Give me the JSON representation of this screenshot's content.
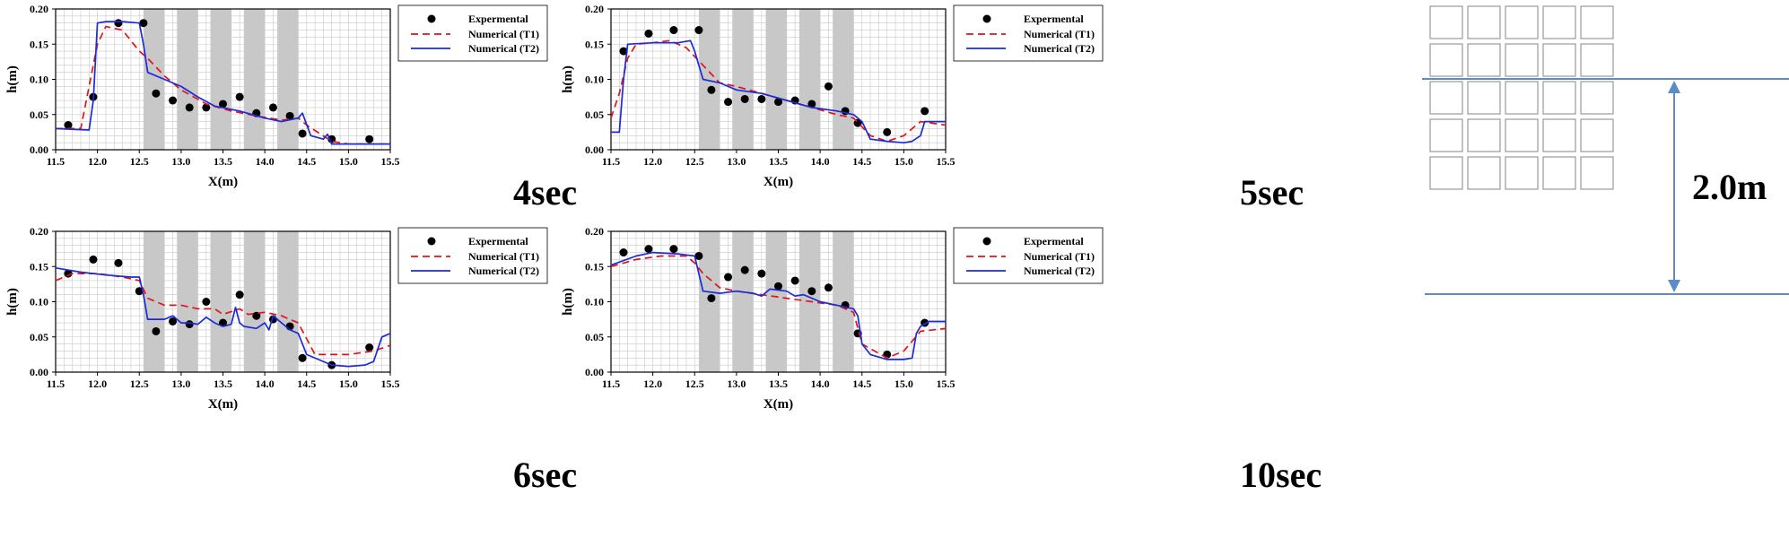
{
  "legend_labels": {
    "experimental": "Expermental",
    "t1": "Numerical (T1)",
    "t2": "Numerical (T2)"
  },
  "colors": {
    "experimental": "#000000",
    "t1": "#e0141a",
    "t2": "#1c2bd6",
    "shade": "#c8c8c8",
    "grid": "#c8c8c8",
    "dimension": "#5b8cc8",
    "building": "#999999"
  },
  "diagram": {
    "distance_label": "2.0m",
    "grid_rows": 5,
    "grid_cols": 5
  },
  "chart_data": [
    {
      "type": "line",
      "title": "",
      "time_label": "4sec",
      "xlabel": "X(m)",
      "ylabel": "h(m)",
      "xlim": [
        11.5,
        15.5
      ],
      "ylim": [
        0,
        0.2
      ],
      "x_ticks": [
        "11.5",
        "12.0",
        "12.5",
        "13.0",
        "13.5",
        "14.0",
        "14.5",
        "15.0",
        "15.5"
      ],
      "y_ticks": [
        "0.00",
        "0.05",
        "0.10",
        "0.15",
        "0.20"
      ],
      "shaded_x": [
        [
          12.55,
          12.8
        ],
        [
          12.95,
          13.2
        ],
        [
          13.35,
          13.6
        ],
        [
          13.75,
          14.0
        ],
        [
          14.15,
          14.4
        ]
      ],
      "series": [
        {
          "name": "Expermental",
          "kind": "points",
          "x": [
            11.65,
            11.95,
            12.25,
            12.55,
            12.7,
            12.9,
            13.1,
            13.3,
            13.5,
            13.7,
            13.9,
            14.1,
            14.3,
            14.45,
            14.8,
            15.25
          ],
          "y": [
            0.035,
            0.075,
            0.18,
            0.18,
            0.08,
            0.07,
            0.06,
            0.06,
            0.065,
            0.075,
            0.052,
            0.06,
            0.048,
            0.023,
            0.015,
            0.015
          ]
        },
        {
          "name": "Numerical (T1)",
          "kind": "dashed",
          "x": [
            11.5,
            11.8,
            12.0,
            12.1,
            12.3,
            12.5,
            12.6,
            12.8,
            13.0,
            13.3,
            13.6,
            13.9,
            14.2,
            14.4,
            14.5,
            14.8,
            15.0,
            15.5
          ],
          "y": [
            0.03,
            0.03,
            0.15,
            0.175,
            0.17,
            0.14,
            0.13,
            0.105,
            0.085,
            0.065,
            0.055,
            0.048,
            0.042,
            0.045,
            0.035,
            0.012,
            0.008,
            0.008
          ]
        },
        {
          "name": "Numerical (T2)",
          "kind": "solid",
          "x": [
            11.5,
            11.9,
            11.95,
            12.0,
            12.1,
            12.3,
            12.5,
            12.55,
            12.6,
            12.8,
            13.0,
            13.2,
            13.4,
            13.7,
            14.0,
            14.2,
            14.4,
            14.45,
            14.55,
            14.7,
            14.75,
            14.8,
            15.0,
            15.5
          ],
          "y": [
            0.03,
            0.028,
            0.07,
            0.18,
            0.182,
            0.182,
            0.18,
            0.15,
            0.11,
            0.1,
            0.09,
            0.075,
            0.062,
            0.055,
            0.045,
            0.04,
            0.045,
            0.052,
            0.02,
            0.015,
            0.022,
            0.008,
            0.008,
            0.008
          ]
        }
      ]
    },
    {
      "type": "line",
      "title": "",
      "time_label": "5sec",
      "xlabel": "X(m)",
      "ylabel": "h(m)",
      "xlim": [
        11.5,
        15.5
      ],
      "ylim": [
        0,
        0.2
      ],
      "x_ticks": [
        "11.5",
        "12.0",
        "12.5",
        "13.0",
        "13.5",
        "14.0",
        "14.5",
        "15.0",
        "15.5"
      ],
      "y_ticks": [
        "0.00",
        "0.05",
        "0.10",
        "0.15",
        "0.20"
      ],
      "shaded_x": [
        [
          12.55,
          12.8
        ],
        [
          12.95,
          13.2
        ],
        [
          13.35,
          13.6
        ],
        [
          13.75,
          14.0
        ],
        [
          14.15,
          14.4
        ]
      ],
      "series": [
        {
          "name": "Expermental",
          "kind": "points",
          "x": [
            11.65,
            11.95,
            12.25,
            12.55,
            12.7,
            12.9,
            13.1,
            13.3,
            13.5,
            13.7,
            13.9,
            14.1,
            14.3,
            14.45,
            14.8,
            15.25
          ],
          "y": [
            0.14,
            0.165,
            0.17,
            0.17,
            0.085,
            0.068,
            0.072,
            0.072,
            0.068,
            0.07,
            0.065,
            0.09,
            0.055,
            0.038,
            0.025,
            0.055
          ]
        },
        {
          "name": "Numerical (T1)",
          "kind": "dashed",
          "x": [
            11.5,
            11.6,
            11.7,
            11.8,
            12.0,
            12.2,
            12.4,
            12.6,
            12.8,
            13.0,
            13.3,
            13.6,
            13.9,
            14.2,
            14.4,
            14.6,
            14.8,
            15.0,
            15.2,
            15.5
          ],
          "y": [
            0.045,
            0.08,
            0.13,
            0.15,
            0.152,
            0.155,
            0.145,
            0.12,
            0.095,
            0.09,
            0.08,
            0.07,
            0.06,
            0.05,
            0.045,
            0.02,
            0.012,
            0.02,
            0.04,
            0.035
          ]
        },
        {
          "name": "Numerical (T2)",
          "kind": "solid",
          "x": [
            11.5,
            11.6,
            11.65,
            11.7,
            12.0,
            12.3,
            12.45,
            12.5,
            12.6,
            12.8,
            13.0,
            13.3,
            13.6,
            13.9,
            14.2,
            14.4,
            14.5,
            14.6,
            14.8,
            15.0,
            15.1,
            15.2,
            15.25,
            15.5
          ],
          "y": [
            0.025,
            0.025,
            0.1,
            0.15,
            0.152,
            0.152,
            0.155,
            0.14,
            0.1,
            0.095,
            0.085,
            0.08,
            0.07,
            0.06,
            0.055,
            0.05,
            0.04,
            0.015,
            0.012,
            0.01,
            0.012,
            0.02,
            0.04,
            0.04
          ]
        }
      ]
    },
    {
      "type": "line",
      "title": "",
      "time_label": "6sec",
      "xlabel": "X(m)",
      "ylabel": "h(m)",
      "xlim": [
        11.5,
        15.5
      ],
      "ylim": [
        0,
        0.2
      ],
      "x_ticks": [
        "11.5",
        "12.0",
        "12.5",
        "13.0",
        "13.5",
        "14.0",
        "14.5",
        "15.0",
        "15.5"
      ],
      "y_ticks": [
        "0.00",
        "0.05",
        "0.10",
        "0.15",
        "0.20"
      ],
      "shaded_x": [
        [
          12.55,
          12.8
        ],
        [
          12.95,
          13.2
        ],
        [
          13.35,
          13.6
        ],
        [
          13.75,
          14.0
        ],
        [
          14.15,
          14.4
        ]
      ],
      "series": [
        {
          "name": "Expermental",
          "kind": "points",
          "x": [
            11.65,
            11.95,
            12.25,
            12.5,
            12.7,
            12.9,
            13.1,
            13.3,
            13.5,
            13.7,
            13.9,
            14.1,
            14.3,
            14.45,
            14.8,
            15.25
          ],
          "y": [
            0.14,
            0.16,
            0.155,
            0.115,
            0.058,
            0.072,
            0.068,
            0.1,
            0.07,
            0.11,
            0.08,
            0.075,
            0.065,
            0.02,
            0.01,
            0.035
          ]
        },
        {
          "name": "Numerical (T1)",
          "kind": "dashed",
          "x": [
            11.5,
            11.7,
            12.0,
            12.3,
            12.5,
            12.6,
            12.8,
            13.0,
            13.2,
            13.4,
            13.5,
            13.7,
            13.8,
            14.0,
            14.2,
            14.4,
            14.6,
            15.0,
            15.3,
            15.5
          ],
          "y": [
            0.13,
            0.14,
            0.14,
            0.135,
            0.13,
            0.105,
            0.095,
            0.095,
            0.09,
            0.09,
            0.082,
            0.09,
            0.082,
            0.085,
            0.08,
            0.07,
            0.025,
            0.025,
            0.03,
            0.038
          ]
        },
        {
          "name": "Numerical (T2)",
          "kind": "solid",
          "x": [
            11.5,
            11.8,
            12.1,
            12.4,
            12.5,
            12.55,
            12.6,
            12.8,
            12.9,
            13.0,
            13.1,
            13.2,
            13.3,
            13.4,
            13.5,
            13.6,
            13.65,
            13.7,
            13.75,
            13.9,
            14.0,
            14.05,
            14.1,
            14.3,
            14.4,
            14.5,
            14.8,
            15.0,
            15.2,
            15.3,
            15.4,
            15.5
          ],
          "y": [
            0.148,
            0.142,
            0.138,
            0.135,
            0.135,
            0.11,
            0.075,
            0.075,
            0.08,
            0.07,
            0.07,
            0.068,
            0.078,
            0.07,
            0.065,
            0.068,
            0.092,
            0.07,
            0.065,
            0.062,
            0.07,
            0.06,
            0.08,
            0.06,
            0.055,
            0.025,
            0.01,
            0.008,
            0.01,
            0.015,
            0.05,
            0.055
          ]
        }
      ]
    },
    {
      "type": "line",
      "title": "",
      "time_label": "10sec",
      "xlabel": "X(m)",
      "ylabel": "h(m)",
      "xlim": [
        11.5,
        15.5
      ],
      "ylim": [
        0,
        0.2
      ],
      "x_ticks": [
        "11.5",
        "12.0",
        "12.5",
        "13.0",
        "13.5",
        "14.0",
        "14.5",
        "15.0",
        "15.5"
      ],
      "y_ticks": [
        "0.00",
        "0.05",
        "0.10",
        "0.15",
        "0.20"
      ],
      "shaded_x": [
        [
          12.55,
          12.8
        ],
        [
          12.95,
          13.2
        ],
        [
          13.35,
          13.6
        ],
        [
          13.75,
          14.0
        ],
        [
          14.15,
          14.4
        ]
      ],
      "series": [
        {
          "name": "Expermental",
          "kind": "points",
          "x": [
            11.65,
            11.95,
            12.25,
            12.55,
            12.7,
            12.9,
            13.1,
            13.3,
            13.5,
            13.7,
            13.9,
            14.1,
            14.3,
            14.45,
            14.8,
            15.25
          ],
          "y": [
            0.17,
            0.175,
            0.175,
            0.165,
            0.105,
            0.135,
            0.145,
            0.14,
            0.122,
            0.13,
            0.115,
            0.12,
            0.095,
            0.055,
            0.025,
            0.07
          ]
        },
        {
          "name": "Numerical (T1)",
          "kind": "dashed",
          "x": [
            11.5,
            11.8,
            12.1,
            12.4,
            12.5,
            12.6,
            12.8,
            13.0,
            13.3,
            13.6,
            13.9,
            14.2,
            14.4,
            14.5,
            14.8,
            15.0,
            15.2,
            15.5
          ],
          "y": [
            0.15,
            0.16,
            0.165,
            0.165,
            0.155,
            0.14,
            0.12,
            0.115,
            0.11,
            0.105,
            0.1,
            0.095,
            0.085,
            0.04,
            0.02,
            0.03,
            0.058,
            0.062
          ]
        },
        {
          "name": "Numerical (T2)",
          "kind": "solid",
          "x": [
            11.5,
            11.8,
            12.0,
            12.3,
            12.5,
            12.55,
            12.6,
            12.8,
            13.0,
            13.2,
            13.3,
            13.4,
            13.6,
            13.7,
            13.8,
            14.0,
            14.2,
            14.4,
            14.45,
            14.5,
            14.6,
            14.8,
            15.0,
            15.1,
            15.15,
            15.2,
            15.3,
            15.5
          ],
          "y": [
            0.152,
            0.165,
            0.17,
            0.168,
            0.165,
            0.14,
            0.115,
            0.112,
            0.115,
            0.112,
            0.108,
            0.118,
            0.115,
            0.108,
            0.11,
            0.1,
            0.095,
            0.09,
            0.08,
            0.04,
            0.025,
            0.018,
            0.018,
            0.02,
            0.055,
            0.065,
            0.072,
            0.072
          ]
        }
      ]
    }
  ]
}
